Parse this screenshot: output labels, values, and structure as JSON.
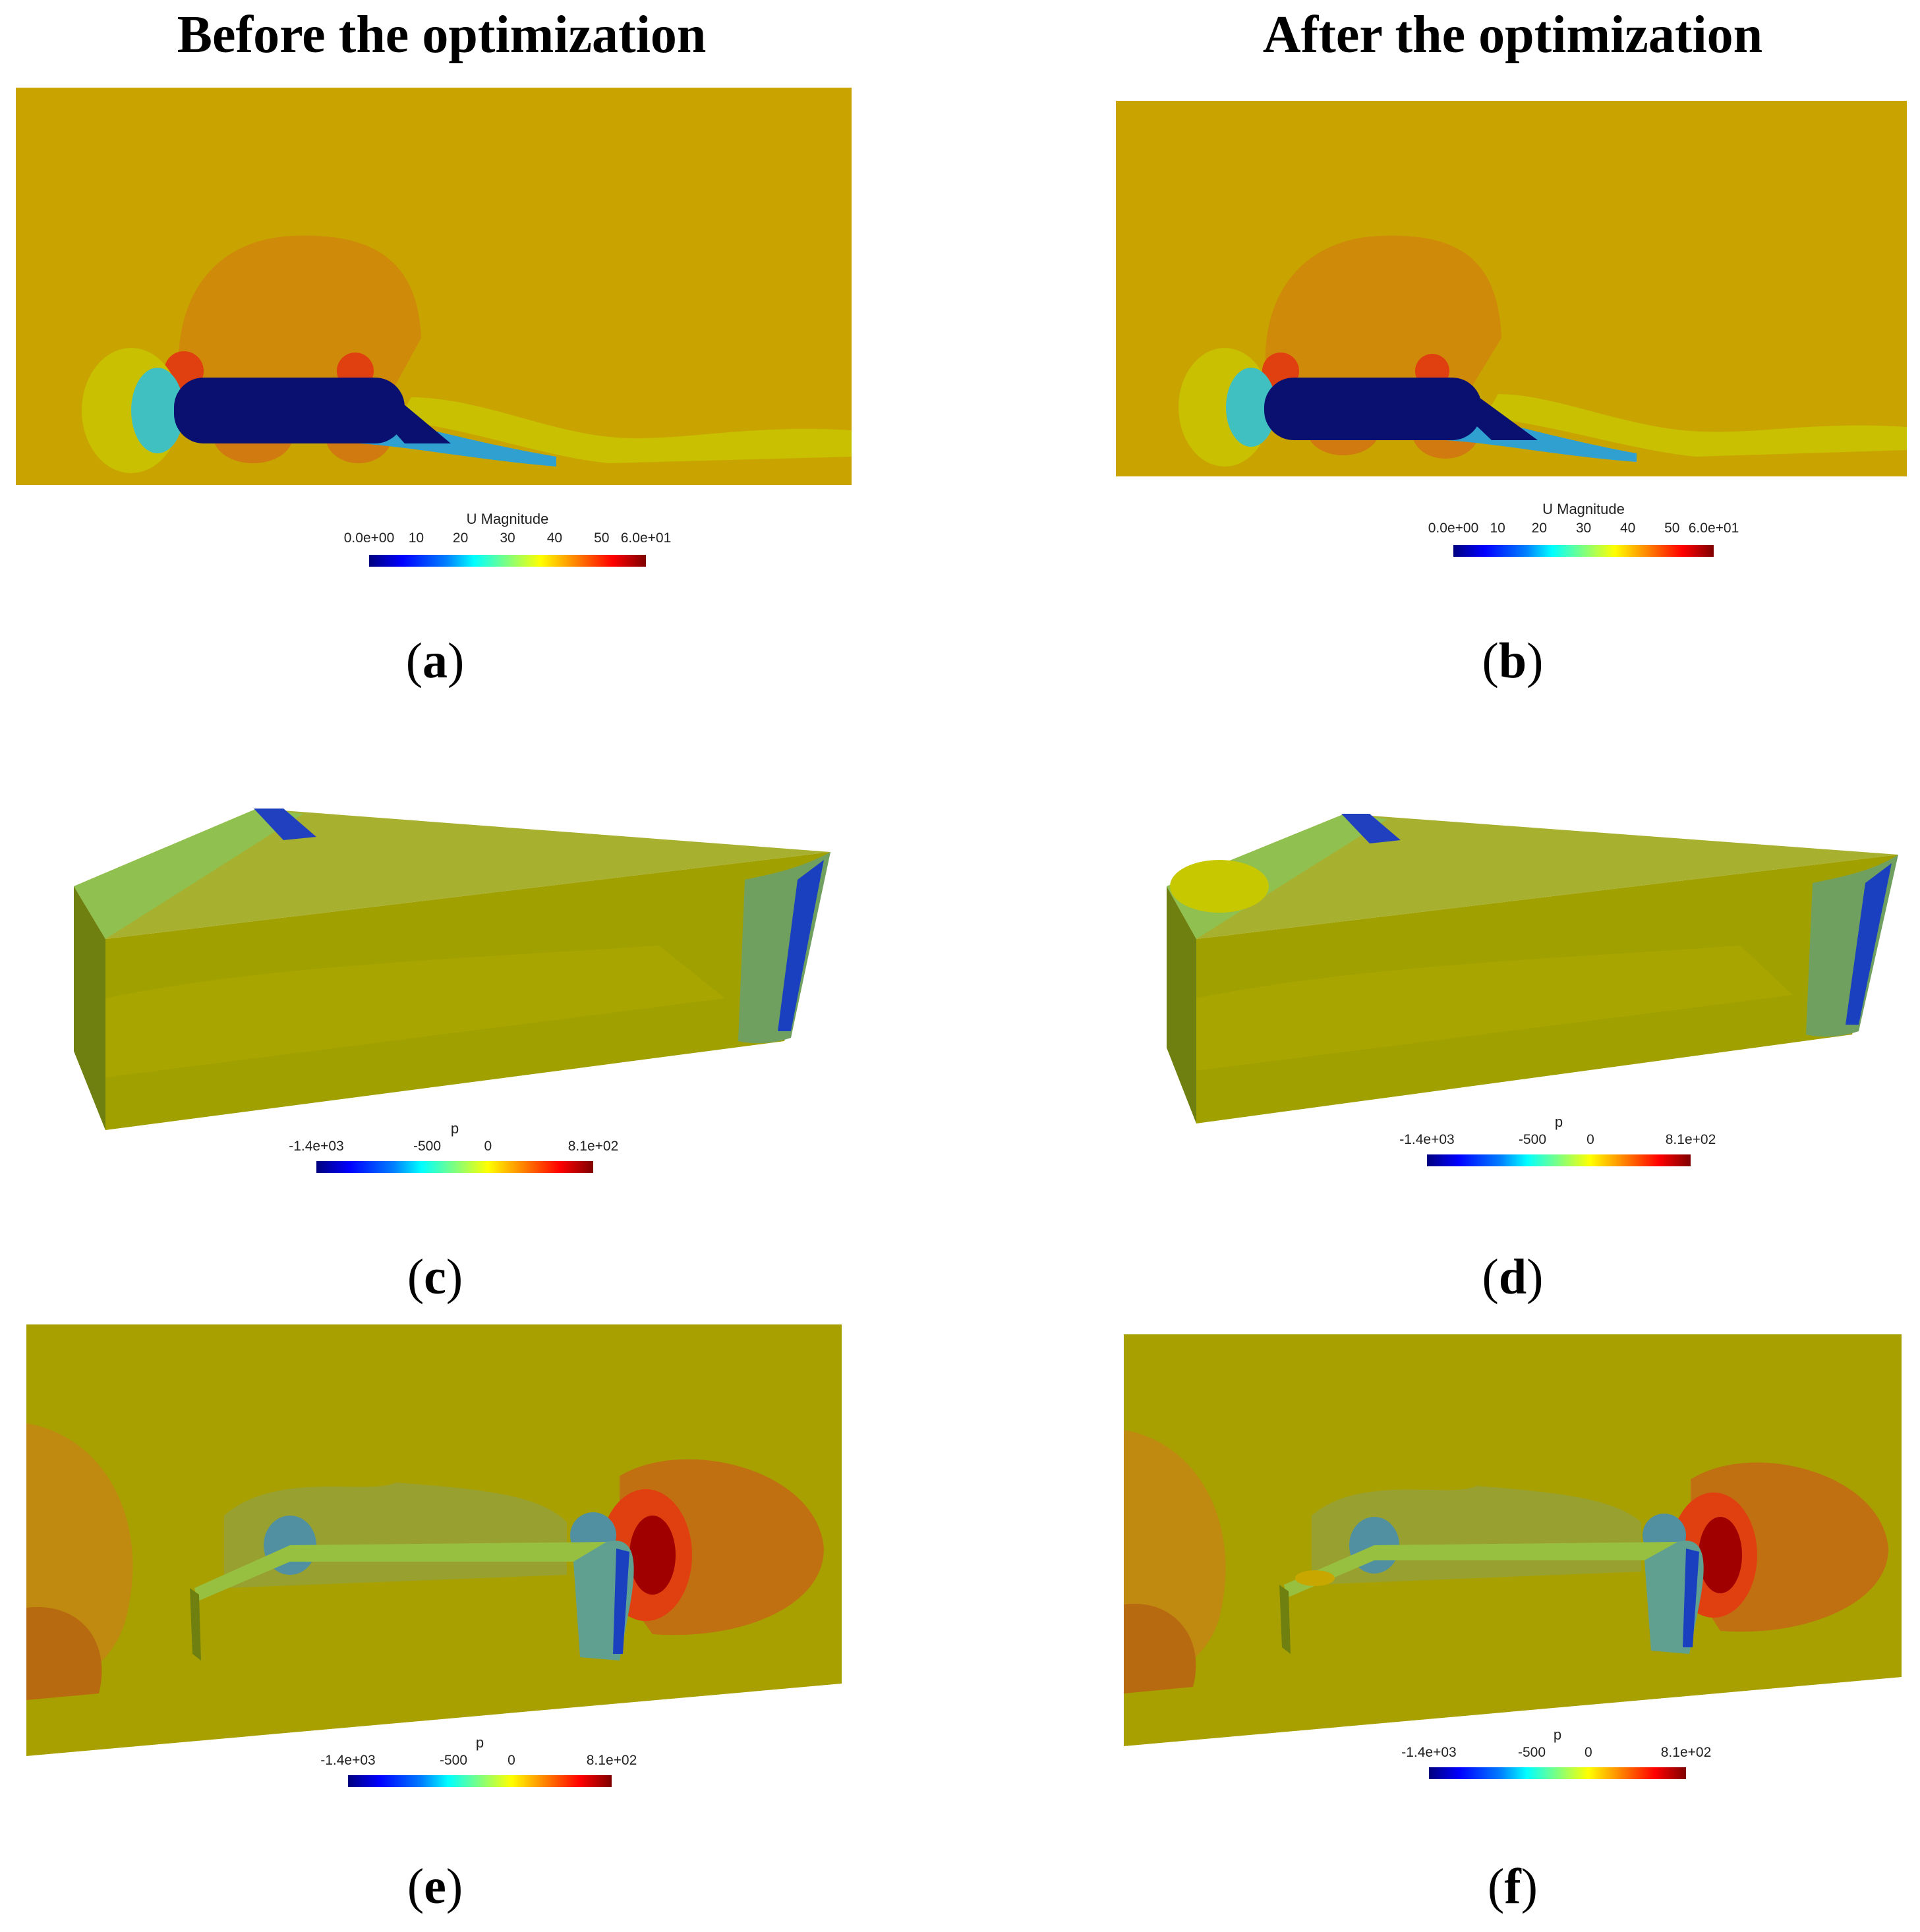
{
  "titles": {
    "left": "Before the optimization",
    "right": "After the optimization"
  },
  "captions": [
    "a",
    "b",
    "c",
    "d",
    "e",
    "f"
  ],
  "legends": {
    "velocity": {
      "title": "U Magnitude",
      "ticks": [
        "0.0e+00",
        "10",
        "20",
        "30",
        "40",
        "50",
        "6.0e+01"
      ]
    },
    "pressure": {
      "title": "p",
      "ticks": [
        "-1.4e+03",
        "-500",
        "0",
        "8.1e+02"
      ]
    }
  },
  "colors": {
    "background_field": "#c8a500",
    "body_dark": "#0a1070",
    "surface_green": "#9aa000"
  }
}
